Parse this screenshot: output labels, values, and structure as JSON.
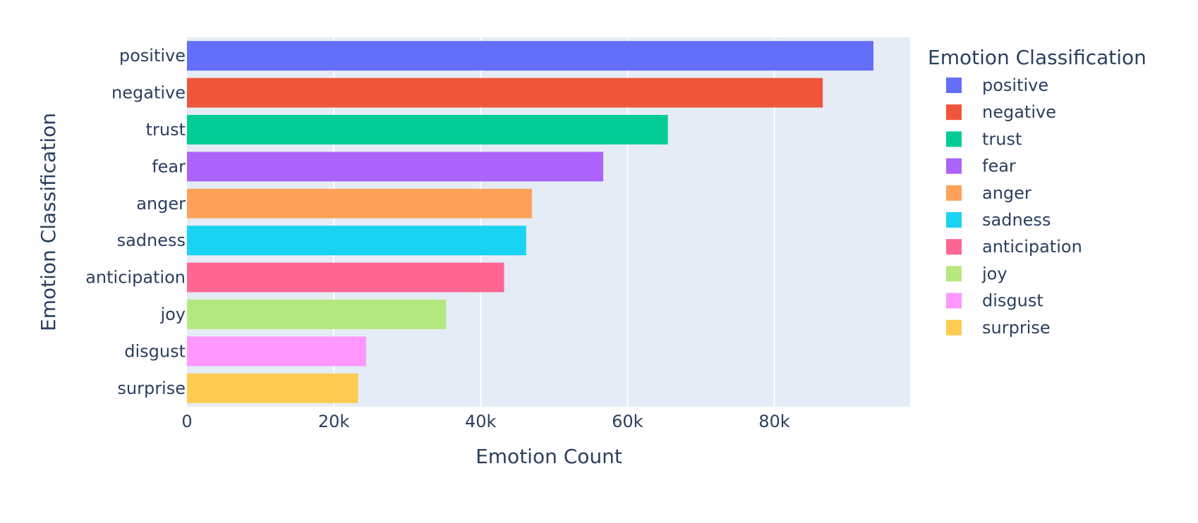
{
  "chart_data": {
    "type": "bar",
    "orientation": "horizontal",
    "title": "",
    "xlabel": "Emotion Count",
    "ylabel": "Emotion Classification",
    "xlim": [
      0,
      98500
    ],
    "x_ticks": [
      0,
      20000,
      40000,
      60000,
      80000
    ],
    "x_tick_labels": [
      "0",
      "20k",
      "40k",
      "60k",
      "80k"
    ],
    "grid": true,
    "legend": {
      "title": "Emotion Classification",
      "placement": "right"
    },
    "categories": [
      "positive",
      "negative",
      "trust",
      "fear",
      "anger",
      "sadness",
      "anticipation",
      "joy",
      "disgust",
      "surprise"
    ],
    "series": [
      {
        "name": "positive",
        "category": "positive",
        "value": 93500,
        "color": "#636efa"
      },
      {
        "name": "negative",
        "category": "negative",
        "value": 86600,
        "color": "#EF553B"
      },
      {
        "name": "trust",
        "category": "trust",
        "value": 65500,
        "color": "#00cc96"
      },
      {
        "name": "fear",
        "category": "fear",
        "value": 56700,
        "color": "#ab63fa"
      },
      {
        "name": "anger",
        "category": "anger",
        "value": 47000,
        "color": "#FFA15A"
      },
      {
        "name": "sadness",
        "category": "sadness",
        "value": 46200,
        "color": "#19d3f3"
      },
      {
        "name": "anticipation",
        "category": "anticipation",
        "value": 43200,
        "color": "#FF6692"
      },
      {
        "name": "joy",
        "category": "joy",
        "value": 35300,
        "color": "#B6E880"
      },
      {
        "name": "disgust",
        "category": "disgust",
        "value": 24400,
        "color": "#FF97FF"
      },
      {
        "name": "surprise",
        "category": "surprise",
        "value": 23300,
        "color": "#FECB52"
      }
    ],
    "colors": {
      "plot_background": "#E5ECF6",
      "gridline": "#ffffff",
      "text": "#2a3f5f"
    }
  }
}
